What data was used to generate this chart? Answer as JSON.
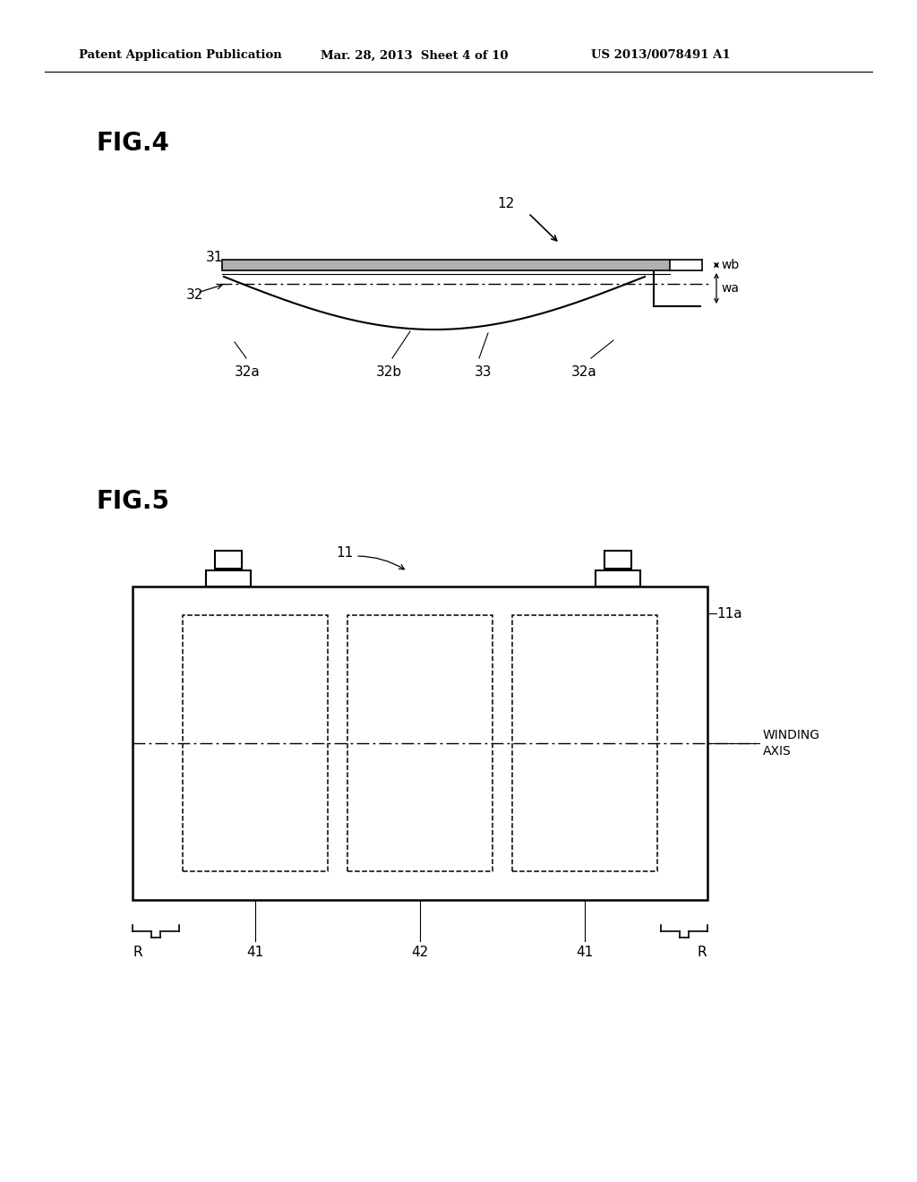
{
  "bg_color": "#ffffff",
  "header_text1": "Patent Application Publication",
  "header_text2": "Mar. 28, 2013  Sheet 4 of 10",
  "header_text3": "US 2013/0078491 A1",
  "fig4_label": "FIG.4",
  "fig5_label": "FIG.5",
  "line_color": "#000000"
}
